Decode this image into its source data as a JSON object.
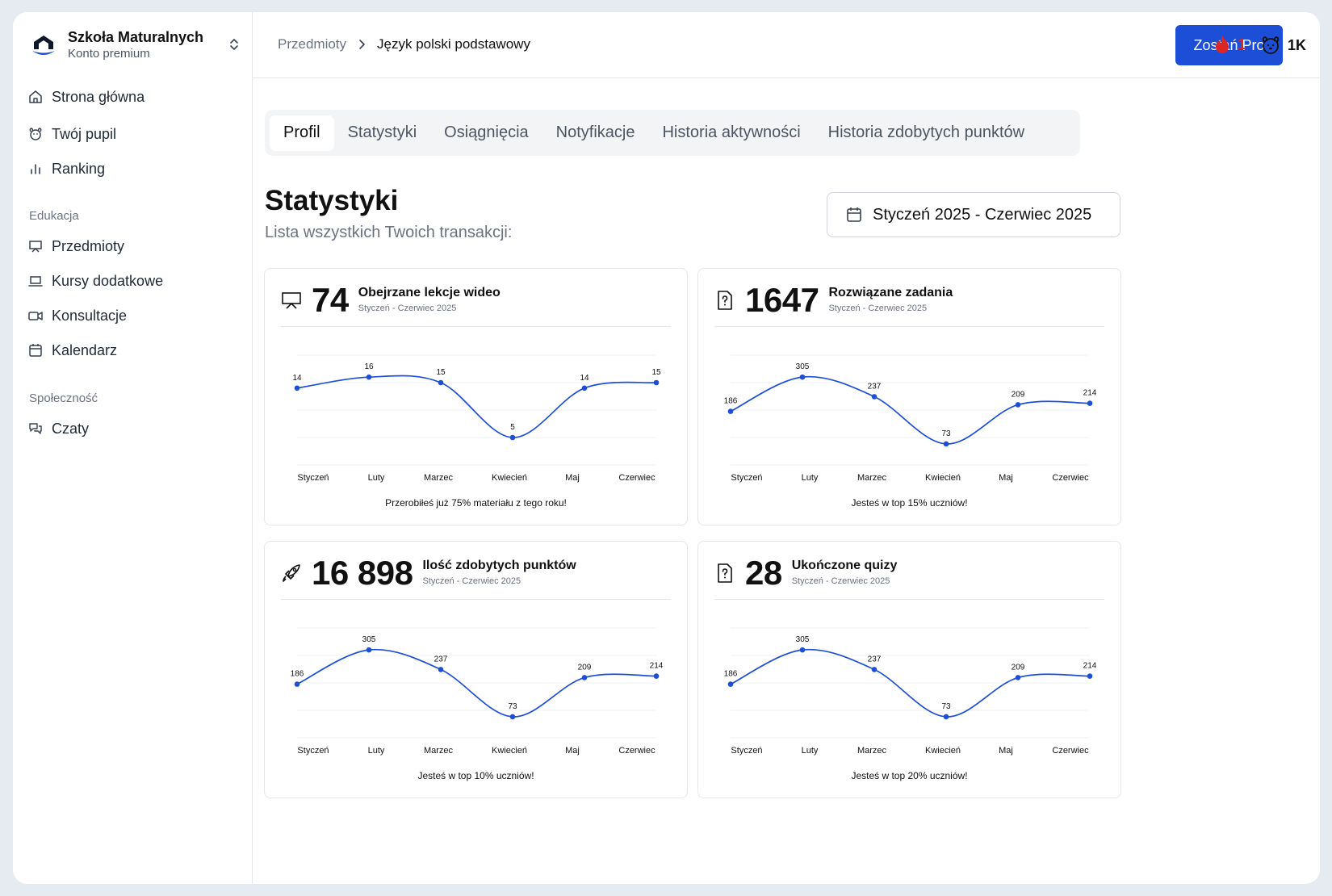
{
  "sidebar": {
    "brand_name": "Szkoła Maturalnych",
    "brand_sub": "Konto premium",
    "items": [
      {
        "label": "Strona główna",
        "icon": "home-icon"
      },
      {
        "label": "Twój pupil",
        "icon": "pet-icon"
      },
      {
        "label": "Ranking",
        "icon": "ranking-icon"
      }
    ],
    "section_education": "Edukacja",
    "education_items": [
      {
        "label": "Przedmioty",
        "icon": "presentation-icon"
      },
      {
        "label": "Kursy dodatkowe",
        "icon": "laptop-icon"
      },
      {
        "label": "Konsultacje",
        "icon": "video-icon"
      },
      {
        "label": "Kalendarz",
        "icon": "calendar-icon"
      }
    ],
    "section_community": "Społeczność",
    "community_items": [
      {
        "label": "Czaty",
        "icon": "chat-icon"
      }
    ]
  },
  "header": {
    "crumb_1": "Przedmioty",
    "crumb_2": "Język polski podstawowy",
    "pro_button": "Zostań Pro",
    "streak": "1",
    "points": "1K",
    "accent": "#1d4ed8",
    "streak_color": "#dc2626"
  },
  "tabs": [
    "Profil",
    "Statystyki",
    "Osiągnięcia",
    "Notyfikacje",
    "Historia aktywności",
    "Historia zdobytych punktów"
  ],
  "main": {
    "title": "Statystyki",
    "subtitle": "Lista wszystkich Twoich transakcji:",
    "date_range": "Styczeń 2025 - Czerwiec 2025"
  },
  "chart_data": [
    {
      "type": "line",
      "number": "74",
      "title": "Obejrzane lekcje wideo",
      "period": "Styczeń - Czerwiec 2025",
      "icon": "presentation-icon",
      "categories": [
        "Styczeń",
        "Luty",
        "Marzec",
        "Kwiecień",
        "Maj",
        "Czerwiec"
      ],
      "values": [
        14,
        16,
        15,
        5,
        14,
        15
      ],
      "ylim": [
        0,
        20
      ],
      "footer": "Przerobiłeś już 75% materiału z tego roku!"
    },
    {
      "type": "line",
      "number": "1647",
      "title": "Rozwiązane zadania",
      "period": "Styczeń - Czerwiec 2025",
      "icon": "question-file-icon",
      "categories": [
        "Styczeń",
        "Luty",
        "Marzec",
        "Kwiecień",
        "Maj",
        "Czerwiec"
      ],
      "values": [
        186,
        305,
        237,
        73,
        209,
        214
      ],
      "ylim": [
        0,
        381
      ],
      "footer": "Jesteś w top 15% uczniów!"
    },
    {
      "type": "line",
      "number": "16 898",
      "title": "Ilość zdobytych punktów",
      "period": "Styczeń - Czerwiec 2025",
      "icon": "rocket-icon",
      "categories": [
        "Styczeń",
        "Luty",
        "Marzec",
        "Kwiecień",
        "Maj",
        "Czerwiec"
      ],
      "values": [
        186,
        305,
        237,
        73,
        209,
        214
      ],
      "ylim": [
        0,
        381
      ],
      "footer": "Jesteś w top 10% uczniów!"
    },
    {
      "type": "line",
      "number": "28",
      "title": "Ukończone quizy",
      "period": "Styczeń - Czerwiec 2025",
      "icon": "question-file-icon",
      "categories": [
        "Styczeń",
        "Luty",
        "Marzec",
        "Kwiecień",
        "Maj",
        "Czerwiec"
      ],
      "values": [
        186,
        305,
        237,
        73,
        209,
        214
      ],
      "ylim": [
        0,
        381
      ],
      "footer": "Jesteś w top 20% uczniów!"
    }
  ]
}
